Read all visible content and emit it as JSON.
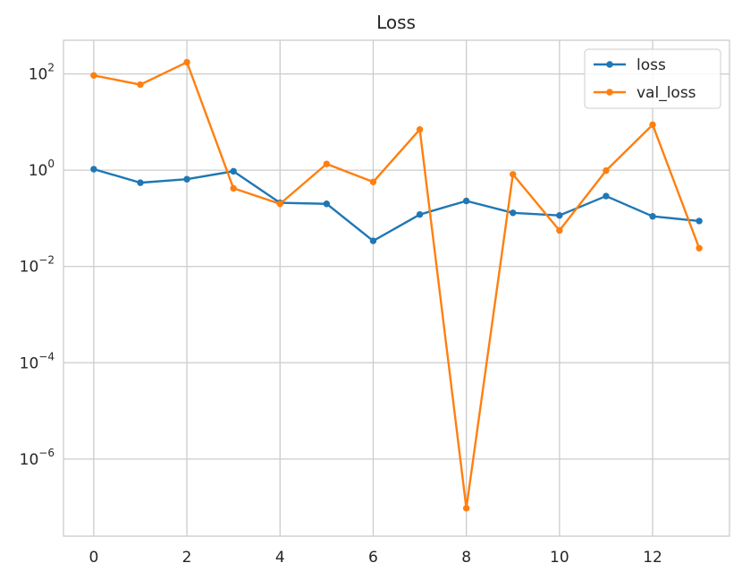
{
  "chart_data": {
    "type": "line",
    "title": "Loss",
    "xlabel": "",
    "ylabel": "",
    "yscale": "log",
    "grid": true,
    "legend_position": "top-right",
    "x": [
      0,
      1,
      2,
      3,
      4,
      5,
      6,
      7,
      8,
      9,
      10,
      11,
      12,
      13
    ],
    "xlim": [
      -0.65,
      13.65
    ],
    "ylim": [
      2.5e-08,
      500
    ],
    "x_ticks": [
      0,
      2,
      4,
      6,
      8,
      10,
      12
    ],
    "x_tick_labels": [
      "0",
      "2",
      "4",
      "6",
      "8",
      "10",
      "12"
    ],
    "y_ticks": [
      {
        "value": 100,
        "base": "10",
        "exp": "2"
      },
      {
        "value": 1,
        "base": "10",
        "exp": "0"
      },
      {
        "value": 0.01,
        "base": "10",
        "exp": "−2"
      },
      {
        "value": 0.0001,
        "base": "10",
        "exp": "−4"
      },
      {
        "value": 1e-06,
        "base": "10",
        "exp": "−6"
      }
    ],
    "series": [
      {
        "name": "loss",
        "color": "#1f77b4",
        "values": [
          1.05,
          0.55,
          0.65,
          0.95,
          0.21,
          0.2,
          0.034,
          0.12,
          0.23,
          0.13,
          0.115,
          0.29,
          0.11,
          0.088
        ]
      },
      {
        "name": "val_loss",
        "color": "#ff7f0e",
        "values": [
          93,
          60,
          175,
          0.42,
          0.2,
          1.35,
          0.57,
          7.0,
          9.5e-08,
          0.82,
          0.056,
          0.98,
          8.8,
          0.024
        ]
      }
    ]
  }
}
